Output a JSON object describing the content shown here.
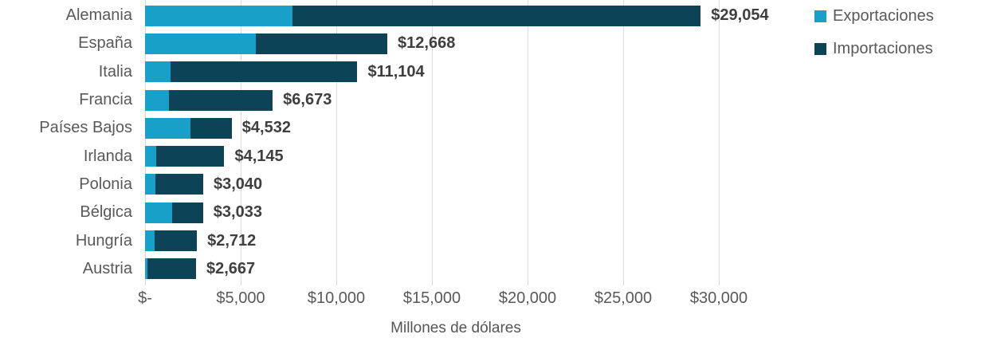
{
  "chart_data": {
    "type": "bar",
    "orientation": "horizontal",
    "stacked": true,
    "title": "",
    "xlabel": "Millones de dólares",
    "ylabel": "",
    "xlim": [
      0,
      30000
    ],
    "grid": true,
    "legend_position": "top-right",
    "categories": [
      "Alemania",
      "España",
      "Italia",
      "Francia",
      "Países Bajos",
      "Irlanda",
      "Polonia",
      "Bélgica",
      "Hungría",
      "Austria"
    ],
    "series": [
      {
        "name": "Exportaciones",
        "color": "#18a0c8",
        "values": [
          7720,
          5810,
          1320,
          1250,
          2360,
          580,
          550,
          1410,
          480,
          110
        ]
      },
      {
        "name": "Importaciones",
        "color": "#0c4356",
        "values": [
          21334,
          6858,
          9784,
          5423,
          2172,
          3565,
          2490,
          1623,
          2232,
          2557
        ]
      }
    ],
    "totals": [
      29054,
      12668,
      11104,
      6673,
      4532,
      4145,
      3040,
      3033,
      2712,
      2667
    ],
    "total_labels": [
      "$29,054",
      "$12,668",
      "$11,104",
      "$6,673",
      "$4,532",
      "$4,145",
      "$3,040",
      "$3,033",
      "$2,712",
      "$2,667"
    ],
    "x_tick_values": [
      0,
      5000,
      10000,
      15000,
      20000,
      25000,
      30000
    ],
    "x_tick_labels": [
      "$-",
      "$5,000",
      "$10,000",
      "$15,000",
      "$20,000",
      "$25,000",
      "$30,000"
    ]
  },
  "colors": {
    "exportaciones": "#18a0c8",
    "importaciones": "#0c4356",
    "gridline": "#d9d9d9",
    "category_text": "#595959",
    "tick_text": "#595959",
    "data_label_text": "#3f3f3f"
  }
}
